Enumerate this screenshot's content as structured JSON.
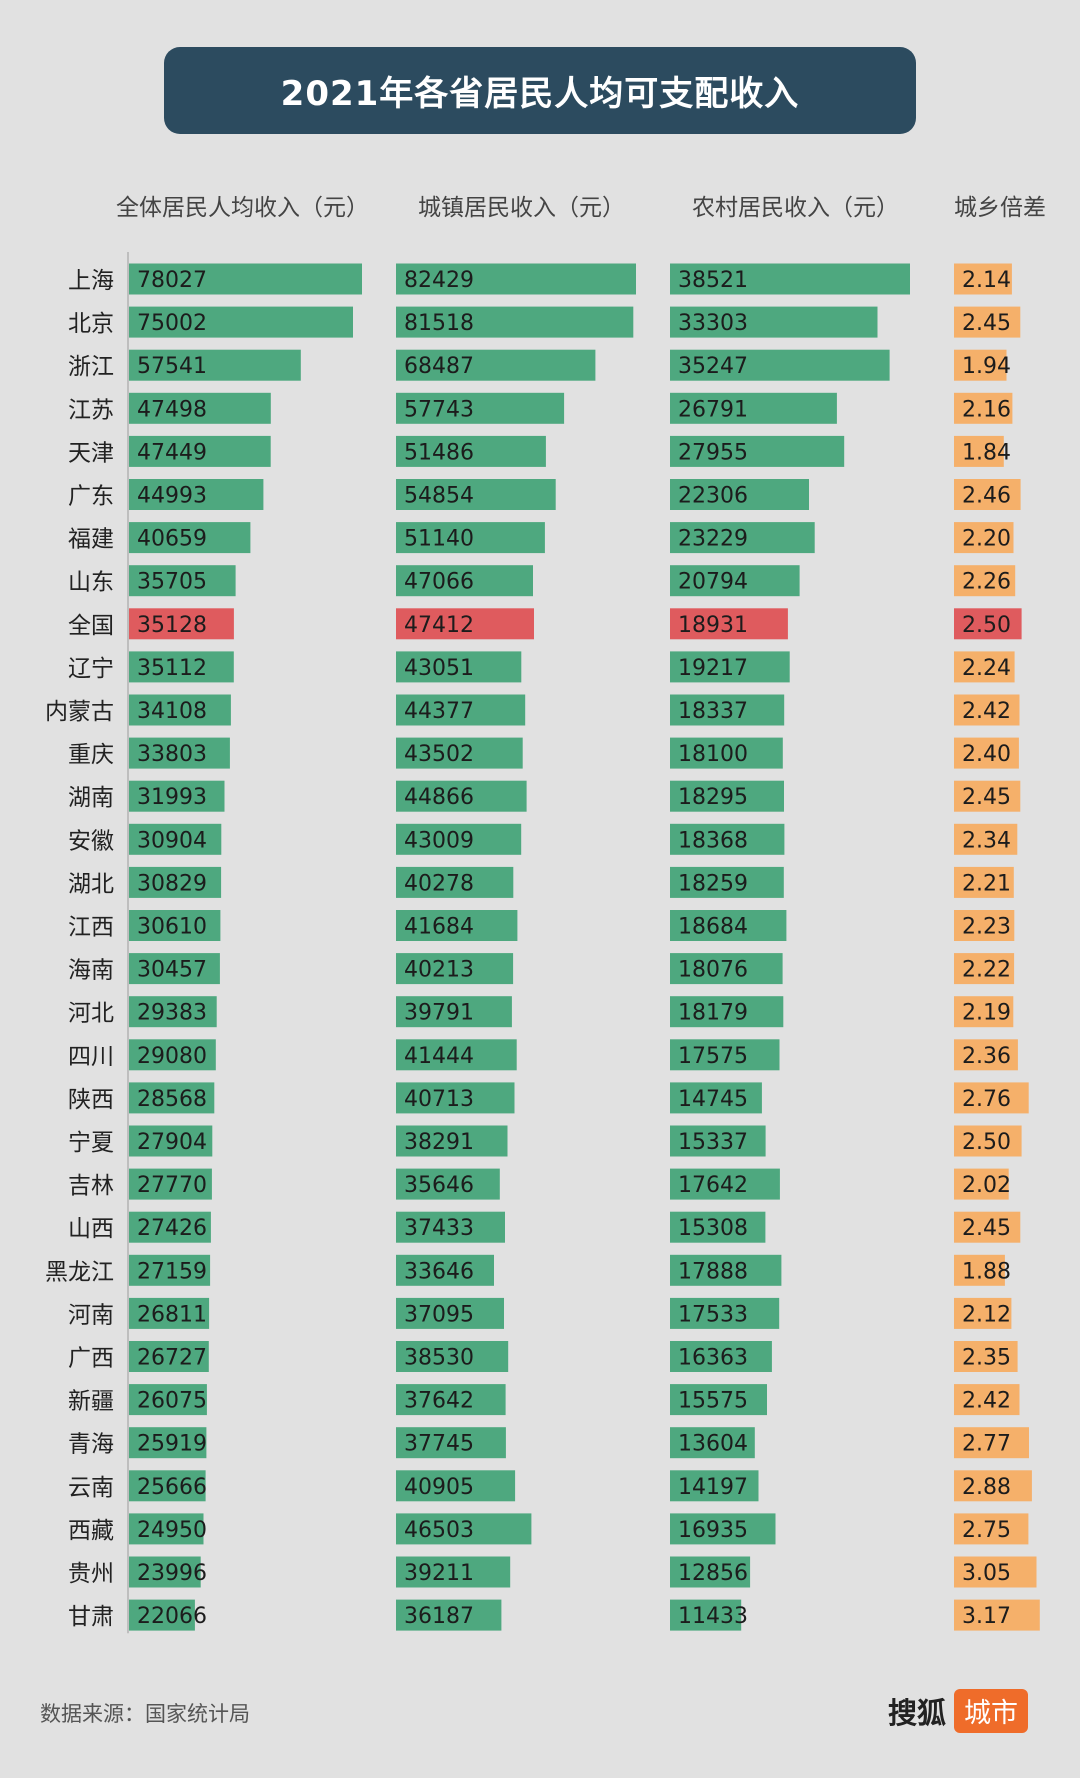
{
  "title": "2021年各省居民人均可支配收入",
  "headers": {
    "overall": "全体居民人均收入（元）",
    "urban": "城镇居民收入（元）",
    "rural": "农村居民收入（元）",
    "ratio": "城乡倍差"
  },
  "footer": {
    "source": "数据来源：国家统计局",
    "logo_main": "搜狐",
    "logo_tag": "城市"
  },
  "colors": {
    "bar": "#4ea87f",
    "highlight": "#df5b5e",
    "ratio_bar": "#f5b06a",
    "title_bg": "#2c4b5f",
    "background": "#e1e1e1"
  },
  "chart_data": {
    "type": "bar",
    "title": "2021年各省居民人均可支配收入",
    "highlight_category": "全国",
    "categories": [
      "上海",
      "北京",
      "浙江",
      "江苏",
      "天津",
      "广东",
      "福建",
      "山东",
      "全国",
      "辽宁",
      "内蒙古",
      "重庆",
      "湖南",
      "安徽",
      "湖北",
      "江西",
      "海南",
      "河北",
      "四川",
      "陕西",
      "宁夏",
      "吉林",
      "山西",
      "黑龙江",
      "河南",
      "广西",
      "新疆",
      "青海",
      "云南",
      "西藏",
      "贵州",
      "甘肃"
    ],
    "series": [
      {
        "name": "全体居民人均收入（元）",
        "values": [
          78027,
          75002,
          57541,
          47498,
          47449,
          44993,
          40659,
          35705,
          35128,
          35112,
          34108,
          33803,
          31993,
          30904,
          30829,
          30610,
          30457,
          29383,
          29080,
          28568,
          27904,
          27770,
          27426,
          27159,
          26811,
          26727,
          26075,
          25919,
          25666,
          24950,
          23996,
          22066
        ]
      },
      {
        "name": "城镇居民收入（元）",
        "values": [
          82429,
          81518,
          68487,
          57743,
          51486,
          54854,
          51140,
          47066,
          47412,
          43051,
          44377,
          43502,
          44866,
          43009,
          40278,
          41684,
          40213,
          39791,
          41444,
          40713,
          38291,
          35646,
          37433,
          33646,
          37095,
          38530,
          37642,
          37745,
          40905,
          46503,
          39211,
          36187
        ]
      },
      {
        "name": "农村居民收入（元）",
        "values": [
          38521,
          33303,
          35247,
          26791,
          27955,
          22306,
          23229,
          20794,
          18931,
          19217,
          18337,
          18100,
          18295,
          18368,
          18259,
          18684,
          18076,
          18179,
          17575,
          14745,
          15337,
          17642,
          15308,
          17888,
          17533,
          16363,
          15575,
          13604,
          14197,
          16935,
          12856,
          11433
        ]
      },
      {
        "name": "城乡倍差",
        "values": [
          "2.14",
          "2.45",
          "1.94",
          "2.16",
          "1.84",
          "2.46",
          "2.20",
          "2.26",
          "2.50",
          "2.24",
          "2.42",
          "2.40",
          "2.45",
          "2.34",
          "2.21",
          "2.23",
          "2.22",
          "2.19",
          "2.36",
          "2.76",
          "2.50",
          "2.02",
          "2.45",
          "1.88",
          "2.12",
          "2.35",
          "2.42",
          "2.77",
          "2.88",
          "2.75",
          "3.05",
          "3.17"
        ]
      }
    ]
  }
}
